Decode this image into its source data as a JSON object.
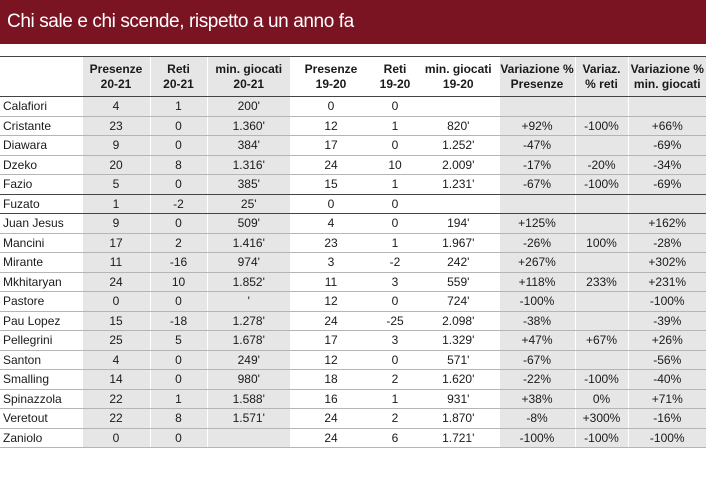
{
  "title": "Chi sale e chi scende, rispetto a un anno fa",
  "headers": [
    {
      "l1": "",
      "l2": "",
      "shade": false
    },
    {
      "l1": "Presenze",
      "l2": "20-21",
      "shade": true
    },
    {
      "l1": "Reti",
      "l2": "20-21",
      "shade": true
    },
    {
      "l1": "min. giocati",
      "l2": "20-21",
      "shade": true
    },
    {
      "l1": "Presenze",
      "l2": "19-20",
      "shade": false
    },
    {
      "l1": "Reti",
      "l2": "19-20",
      "shade": false
    },
    {
      "l1": "min. giocati",
      "l2": "19-20",
      "shade": false
    },
    {
      "l1": "Variazione %",
      "l2": "Presenze",
      "shade": true
    },
    {
      "l1": "Variaz.",
      "l2": "% reti",
      "shade": true
    },
    {
      "l1": "Variazione %",
      "l2": "min. giocati",
      "shade": true
    }
  ],
  "rows": [
    {
      "name": "Calafiori",
      "cells": [
        "4",
        "1",
        "200'",
        "0",
        "0",
        "",
        "",
        "",
        ""
      ]
    },
    {
      "name": "Cristante",
      "cells": [
        "23",
        "0",
        "1.360'",
        "12",
        "1",
        "820'",
        "+92%",
        "-100%",
        "+66%"
      ]
    },
    {
      "name": "Diawara",
      "cells": [
        "9",
        "0",
        "384'",
        "17",
        "0",
        "1.252'",
        "-47%",
        "",
        "-69%"
      ]
    },
    {
      "name": "Dzeko",
      "cells": [
        "20",
        "8",
        "1.316'",
        "24",
        "10",
        "2.009'",
        "-17%",
        "-20%",
        "-34%"
      ]
    },
    {
      "name": "Fazio",
      "cells": [
        "5",
        "0",
        "385'",
        "15",
        "1",
        "1.231'",
        "-67%",
        "-100%",
        "-69%"
      ]
    },
    {
      "name": "Fuzato",
      "cells": [
        "1",
        "-2",
        "25'",
        "0",
        "0",
        "",
        "",
        "",
        ""
      ]
    },
    {
      "name": "Juan Jesus",
      "cells": [
        "9",
        "0",
        "509'",
        "4",
        "0",
        "194'",
        "+125%",
        "",
        "+162%"
      ]
    },
    {
      "name": "Mancini",
      "cells": [
        "17",
        "2",
        "1.416'",
        "23",
        "1",
        "1.967'",
        "-26%",
        "100%",
        "-28%"
      ]
    },
    {
      "name": "Mirante",
      "cells": [
        "11",
        "-16",
        "974'",
        "3",
        "-2",
        "242'",
        "+267%",
        "",
        "+302%"
      ]
    },
    {
      "name": "Mkhitaryan",
      "cells": [
        "24",
        "10",
        "1.852'",
        "11",
        "3",
        "559'",
        "+118%",
        "233%",
        "+231%"
      ]
    },
    {
      "name": "Pastore",
      "cells": [
        "0",
        "0",
        "'",
        "12",
        "0",
        "724'",
        "-100%",
        "",
        "-100%"
      ]
    },
    {
      "name": "Pau Lopez",
      "cells": [
        "15",
        "-18",
        "1.278'",
        "24",
        "-25",
        "2.098'",
        "-38%",
        "",
        "-39%"
      ]
    },
    {
      "name": "Pellegrini",
      "cells": [
        "25",
        "5",
        "1.678'",
        "17",
        "3",
        "1.329'",
        "+47%",
        "+67%",
        "+26%"
      ]
    },
    {
      "name": "Santon",
      "cells": [
        "4",
        "0",
        "249'",
        "12",
        "0",
        "571'",
        "-67%",
        "",
        "-56%"
      ]
    },
    {
      "name": "Smalling",
      "cells": [
        "14",
        "0",
        "980'",
        "18",
        "2",
        "1.620'",
        "-22%",
        "-100%",
        "-40%"
      ]
    },
    {
      "name": "Spinazzola",
      "cells": [
        "22",
        "1",
        "1.588'",
        "16",
        "1",
        "931'",
        "+38%",
        "0%",
        "+71%"
      ]
    },
    {
      "name": "Veretout",
      "cells": [
        "22",
        "8",
        "1.571'",
        "24",
        "2",
        "1.870'",
        "-8%",
        "+300%",
        "-16%"
      ]
    },
    {
      "name": "Zaniolo",
      "cells": [
        "0",
        "0",
        "",
        "24",
        "6",
        "1.721'",
        "-100%",
        "-100%",
        "-100%"
      ]
    }
  ],
  "dark_divider_after": [
    "Fazio",
    "Fuzato"
  ]
}
